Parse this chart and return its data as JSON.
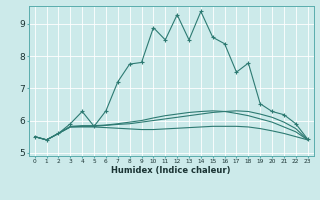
{
  "xlabel": "Humidex (Indice chaleur)",
  "x": [
    0,
    1,
    2,
    3,
    4,
    5,
    6,
    7,
    8,
    9,
    10,
    11,
    12,
    13,
    14,
    15,
    16,
    17,
    18,
    19,
    20,
    21,
    22,
    23
  ],
  "line1": [
    5.5,
    5.4,
    5.6,
    5.8,
    5.8,
    5.8,
    5.78,
    5.76,
    5.74,
    5.72,
    5.72,
    5.74,
    5.76,
    5.78,
    5.8,
    5.82,
    5.82,
    5.82,
    5.8,
    5.75,
    5.68,
    5.6,
    5.5,
    5.4
  ],
  "line2": [
    5.5,
    5.4,
    5.6,
    5.8,
    5.82,
    5.82,
    5.85,
    5.88,
    5.9,
    5.95,
    6.0,
    6.05,
    6.1,
    6.15,
    6.2,
    6.25,
    6.28,
    6.3,
    6.28,
    6.2,
    6.1,
    5.95,
    5.75,
    5.4
  ],
  "line3": [
    5.5,
    5.4,
    5.6,
    5.82,
    5.84,
    5.84,
    5.86,
    5.9,
    5.95,
    6.0,
    6.08,
    6.15,
    6.2,
    6.25,
    6.28,
    6.3,
    6.28,
    6.22,
    6.15,
    6.05,
    5.95,
    5.8,
    5.65,
    5.4
  ],
  "line4": [
    5.5,
    5.4,
    5.6,
    5.9,
    6.28,
    5.82,
    6.3,
    7.2,
    7.75,
    7.8,
    8.88,
    8.5,
    9.28,
    8.5,
    9.38,
    8.58,
    8.38,
    7.5,
    7.78,
    6.52,
    6.28,
    6.18,
    5.9,
    5.42
  ],
  "bg_color": "#cceaea",
  "line_color": "#2d7a72",
  "grid_color": "#ffffff",
  "ylim": [
    4.9,
    9.55
  ],
  "xlim": [
    -0.5,
    23.5
  ],
  "yticks": [
    5,
    6,
    7,
    8,
    9
  ],
  "xticks": [
    0,
    1,
    2,
    3,
    4,
    5,
    6,
    7,
    8,
    9,
    10,
    11,
    12,
    13,
    14,
    15,
    16,
    17,
    18,
    19,
    20,
    21,
    22,
    23
  ]
}
